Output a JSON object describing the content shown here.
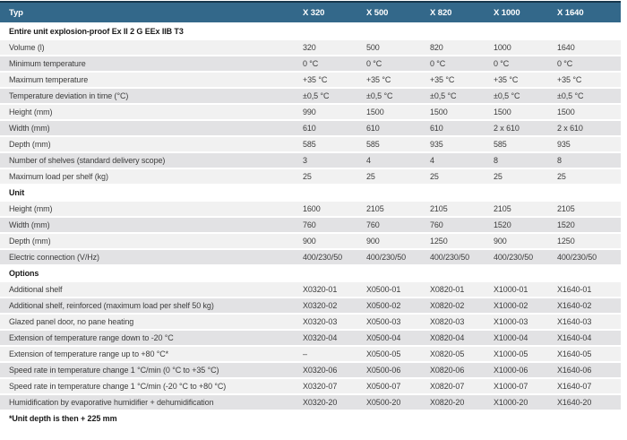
{
  "table": {
    "columns": [
      "Typ",
      "X 320",
      "X 500",
      "X 820",
      "X 1000",
      "X 1640"
    ],
    "sections": [
      {
        "title": "Entire unit explosion-proof Ex II 2 G EEx IIB T3",
        "rows": [
          {
            "label": "Volume (l)",
            "values": [
              "320",
              "500",
              "820",
              "1000",
              "1640"
            ]
          },
          {
            "label": "Minimum temperature",
            "values": [
              "0 °C",
              "0 °C",
              "0 °C",
              "0 °C",
              "0 °C"
            ]
          },
          {
            "label": "Maximum temperature",
            "values": [
              "+35 °C",
              "+35 °C",
              "+35 °C",
              "+35 °C",
              "+35 °C"
            ]
          },
          {
            "label": "Temperature deviation in time (°C)",
            "values": [
              "±0,5 °C",
              "±0,5 °C",
              "±0,5 °C",
              "±0,5 °C",
              "±0,5 °C"
            ]
          },
          {
            "label": "Height (mm)",
            "values": [
              "990",
              "1500",
              "1500",
              "1500",
              "1500"
            ]
          },
          {
            "label": "Width (mm)",
            "values": [
              "610",
              "610",
              "610",
              "2 x 610",
              "2 x 610"
            ]
          },
          {
            "label": "Depth (mm)",
            "values": [
              "585",
              "585",
              "935",
              "585",
              "935"
            ]
          },
          {
            "label": "Number of shelves (standard delivery scope)",
            "values": [
              "3",
              "4",
              "4",
              "8",
              "8"
            ]
          },
          {
            "label": "Maximum load per shelf (kg)",
            "values": [
              "25",
              "25",
              "25",
              "25",
              "25"
            ]
          }
        ]
      },
      {
        "title": "Unit",
        "rows": [
          {
            "label": "Height (mm)",
            "values": [
              "1600",
              "2105",
              "2105",
              "2105",
              "2105"
            ]
          },
          {
            "label": "Width (mm)",
            "values": [
              "760",
              "760",
              "760",
              "1520",
              "1520"
            ]
          },
          {
            "label": "Depth (mm)",
            "values": [
              "900",
              "900",
              "1250",
              "900",
              "1250"
            ]
          },
          {
            "label": "Electric connection (V/Hz)",
            "values": [
              "400/230/50",
              "400/230/50",
              "400/230/50",
              "400/230/50",
              "400/230/50"
            ]
          }
        ]
      },
      {
        "title": "Options",
        "rows": [
          {
            "label": "Additional shelf",
            "values": [
              "X0320-01",
              "X0500-01",
              "X0820-01",
              "X1000-01",
              "X1640-01"
            ]
          },
          {
            "label": "Additional shelf, reinforced (maximum load per shelf 50 kg)",
            "values": [
              "X0320-02",
              "X0500-02",
              "X0820-02",
              "X1000-02",
              "X1640-02"
            ]
          },
          {
            "label": "Glazed panel door, no pane heating",
            "values": [
              "X0320-03",
              "X0500-03",
              "X0820-03",
              "X1000-03",
              "X1640-03"
            ]
          },
          {
            "label": "Extension of temperature range down to -20 °C",
            "values": [
              "X0320-04",
              "X0500-04",
              "X0820-04",
              "X1000-04",
              "X1640-04"
            ]
          },
          {
            "label": "Extension of temperature range up to +80 °C*",
            "values": [
              "–",
              "X0500-05",
              "X0820-05",
              "X1000-05",
              "X1640-05"
            ]
          },
          {
            "label": "Speed rate in temperature change 1 °C/min (0 °C to +35 °C)",
            "values": [
              "X0320-06",
              "X0500-06",
              "X0820-06",
              "X1000-06",
              "X1640-06"
            ]
          },
          {
            "label": "Speed rate in temperature change 1 °C/min (-20 °C to +80 °C)",
            "values": [
              "X0320-07",
              "X0500-07",
              "X0820-07",
              "X1000-07",
              "X1640-07"
            ]
          },
          {
            "label": "Humidification by evaporative humidifier + dehumidification",
            "values": [
              "X0320-20",
              "X0500-20",
              "X0820-20",
              "X1000-20",
              "X1640-20"
            ]
          }
        ]
      }
    ],
    "footnote": "*Unit depth is then + 225 mm",
    "colors": {
      "header_bg": "#33688a",
      "header_border": "#17374d",
      "header_text": "#ffffff",
      "row_light": "#f1f1f1",
      "row_dark": "#e2e2e4",
      "section_bg": "#ffffff",
      "text": "#3c3c3c",
      "section_text": "#1a1a1a"
    }
  }
}
